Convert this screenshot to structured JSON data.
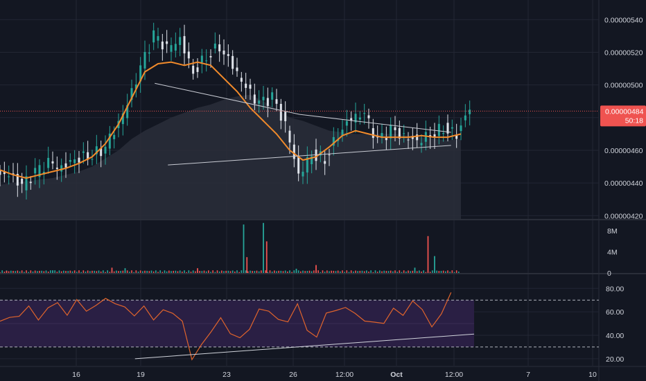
{
  "colors": {
    "background": "#131722",
    "grid": "#232734",
    "up": "#26a69a",
    "down": "#ef5350",
    "candle": "#dfe3ea",
    "ma": "#f28b2b",
    "rsi": "#e0642c",
    "rsi_band": "#2a1f44",
    "axis_text": "#d1d4dc",
    "price_label_bg": "#ef5350",
    "area_fill": "#2a2e39"
  },
  "price_tag": {
    "price": "0.00000484",
    "countdown": "50:18",
    "value": 4.84e-06
  },
  "chart_data": [
    {
      "type": "line",
      "name": "price",
      "y_ticks": [
        "0.00000540",
        "0.00000520",
        "0.00000500",
        "0.00000480",
        "0.00000460",
        "0.00000440",
        "0.00000420"
      ],
      "ylim": [
        4.18e-06,
        5.52e-06
      ],
      "x_ticks": [
        "16",
        "19",
        "23",
        "26",
        "12:00",
        "Oct",
        "12:00",
        "7",
        "10"
      ],
      "x": [
        0,
        2,
        4,
        6,
        8,
        10,
        12,
        14,
        16,
        18,
        20,
        22,
        24,
        26,
        28,
        30,
        32,
        34,
        36,
        38,
        40,
        42,
        44,
        46,
        48,
        50,
        52,
        54,
        56,
        58,
        60,
        62,
        64,
        66,
        68,
        70
      ],
      "close": [
        4.45,
        4.38,
        4.46,
        4.52,
        4.49,
        4.55,
        4.57,
        4.6,
        4.72,
        4.88,
        5.1,
        5.3,
        5.22,
        5.28,
        5.08,
        5.18,
        5.24,
        5.12,
        4.98,
        4.88,
        4.92,
        4.75,
        4.45,
        4.58,
        4.55,
        4.7,
        4.8,
        4.82,
        4.65,
        4.72,
        4.68,
        4.66,
        4.7,
        4.74,
        4.7,
        4.86
      ],
      "ma": [
        4.48,
        4.45,
        4.43,
        4.45,
        4.47,
        4.49,
        4.52,
        4.56,
        4.64,
        4.76,
        4.92,
        5.08,
        5.13,
        5.14,
        5.12,
        5.14,
        5.12,
        5.04,
        4.96,
        4.86,
        4.78,
        4.7,
        4.6,
        4.54,
        4.56,
        4.62,
        4.69,
        4.72,
        4.7,
        4.68,
        4.68,
        4.68,
        4.69,
        4.68,
        4.68,
        4.7
      ],
      "area": [
        4.39,
        4.4,
        4.41,
        4.42,
        4.43,
        4.45,
        4.47,
        4.5,
        4.55,
        4.6,
        4.67,
        4.72,
        4.76,
        4.8,
        4.83,
        4.86,
        4.88,
        4.91,
        4.93,
        4.94,
        4.9,
        4.85,
        4.8,
        4.78,
        4.75,
        4.72,
        4.71,
        4.7,
        4.7,
        4.7,
        4.7,
        4.69,
        4.68,
        4.67,
        4.66,
        4.67
      ],
      "triangle": {
        "upper": [
          [
            23.5,
            5.01
          ],
          [
            45.5,
            4.82
          ],
          [
            68.5,
            4.71
          ]
        ],
        "lower": [
          [
            25.5,
            4.51
          ],
          [
            68.5,
            4.63
          ]
        ]
      }
    },
    {
      "type": "bar",
      "name": "volume",
      "y_ticks": [
        "8M",
        "4M",
        "0"
      ],
      "ylim": [
        0,
        10
      ],
      "spikes": [
        [
          1,
          0.4
        ],
        [
          8,
          0.5
        ],
        [
          17,
          1.0
        ],
        [
          19,
          0.9
        ],
        [
          30,
          0.9
        ],
        [
          37,
          9.2
        ],
        [
          37.5,
          3.0
        ],
        [
          40,
          9.5
        ],
        [
          40.5,
          6.0
        ],
        [
          45,
          0.8
        ],
        [
          48,
          1.5
        ],
        [
          63,
          1.0
        ],
        [
          65,
          7.0
        ],
        [
          66,
          3.2
        ]
      ]
    },
    {
      "type": "line",
      "name": "rsi",
      "y_ticks": [
        "80.00",
        "60.00",
        "40.00",
        "20.00"
      ],
      "ylim": [
        14,
        92
      ],
      "band": [
        30,
        70
      ],
      "midline": 50,
      "values": [
        52,
        58,
        54,
        64,
        56,
        62,
        66,
        60,
        70,
        58,
        68,
        72,
        64,
        66,
        58,
        62,
        54,
        64,
        56,
        52,
        22,
        30,
        42,
        58,
        40,
        36,
        48,
        62,
        58,
        56,
        52,
        64,
        46,
        40,
        56,
        62,
        66,
        56,
        52,
        54,
        48,
        62,
        60,
        68,
        60,
        50,
        58,
        74
      ],
      "trend": [
        [
          20.5,
          20
        ],
        [
          72,
          41
        ]
      ]
    }
  ]
}
